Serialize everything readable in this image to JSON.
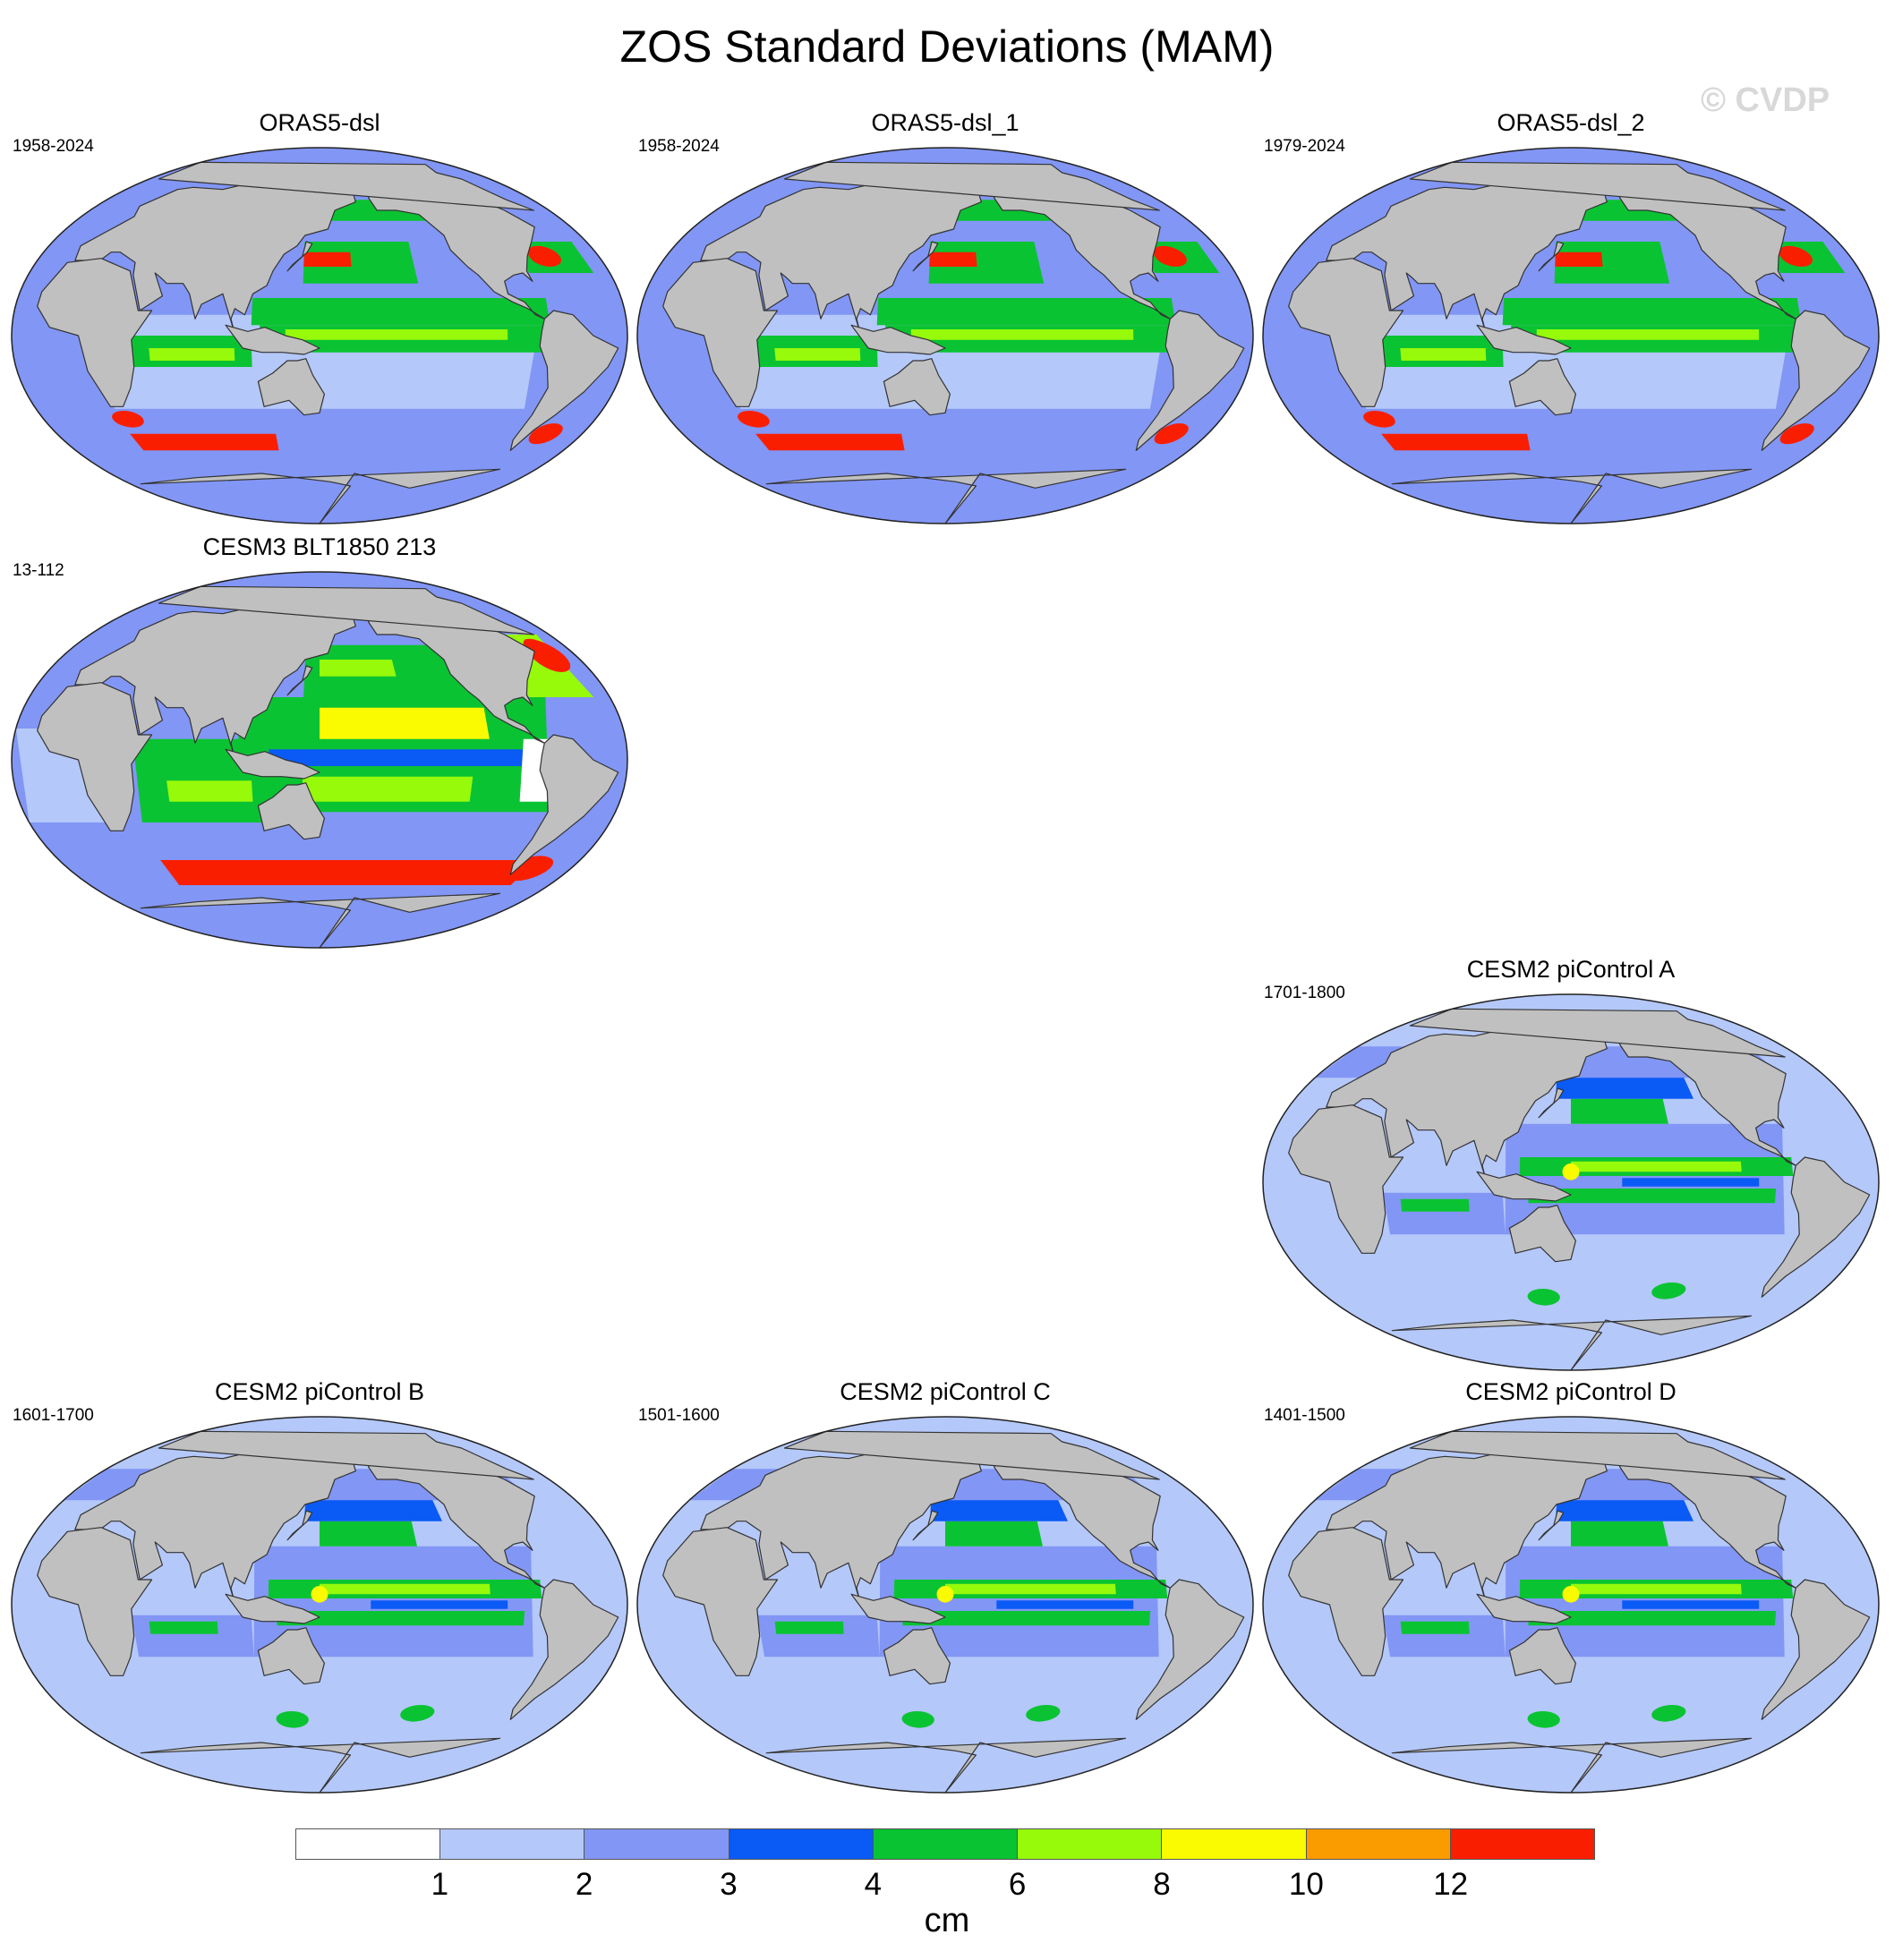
{
  "title": "ZOS Standard Deviations (MAM)",
  "watermark": "© CVDP",
  "colorbar": {
    "unit": "cm",
    "levels": [
      "1",
      "2",
      "3",
      "4",
      "6",
      "8",
      "10",
      "12"
    ],
    "colors": [
      "#ffffff",
      "#b4c8fa",
      "#8296f5",
      "#0a5af5",
      "#0ac332",
      "#96fa0a",
      "#fafa00",
      "#fa9b00",
      "#fa1e00"
    ]
  },
  "map_colors": {
    "land": "#c0c0c0",
    "coast": "#333333",
    "outline": "#222222"
  },
  "panels": [
    {
      "title": "ORAS5-dsl",
      "period": "1958-2024",
      "style": "oras"
    },
    {
      "title": "ORAS5-dsl_1",
      "period": "1958-2024",
      "style": "oras"
    },
    {
      "title": "ORAS5-dsl_2",
      "period": "1979-2024",
      "style": "oras"
    },
    {
      "title": "CESM3 BLT1850 213",
      "period": "13-112",
      "style": "cesm3"
    },
    {
      "title": "CESM2 piControl A",
      "period": "1701-1800",
      "style": "cesm2"
    },
    {
      "title": "CESM2 piControl B",
      "period": "1601-1700",
      "style": "cesm2"
    },
    {
      "title": "CESM2 piControl C",
      "period": "1501-1600",
      "style": "cesm2"
    },
    {
      "title": "CESM2 piControl D",
      "period": "1401-1500",
      "style": "cesm2"
    }
  ]
}
